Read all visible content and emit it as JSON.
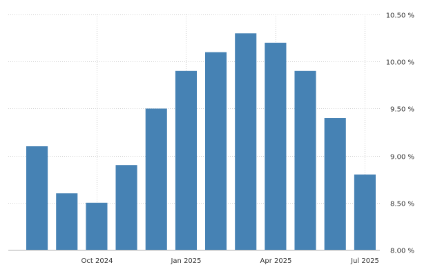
{
  "chart_data": {
    "type": "bar",
    "title": "",
    "xlabel": "",
    "ylabel": "",
    "x": [
      "2024-08",
      "2024-09",
      "2024-10",
      "2024-11",
      "2024-12",
      "2025-01",
      "2025-02",
      "2025-03",
      "2025-04",
      "2025-05",
      "2025-06",
      "2025-07"
    ],
    "values": [
      9.1,
      8.6,
      8.5,
      8.9,
      9.5,
      9.9,
      10.1,
      10.3,
      10.2,
      9.9,
      9.4,
      8.8
    ],
    "ylim": [
      8.0,
      10.5
    ],
    "y_ticks": [
      {
        "value": 8.0,
        "label": "8.00 %"
      },
      {
        "value": 8.5,
        "label": "8.50 %"
      },
      {
        "value": 9.0,
        "label": "9.00 %"
      },
      {
        "value": 9.5,
        "label": "9.50 %"
      },
      {
        "value": 10.0,
        "label": "10.00 %"
      },
      {
        "value": 10.5,
        "label": "10.50 %"
      }
    ],
    "x_ticks": [
      {
        "index": 2,
        "label": "Oct 2024"
      },
      {
        "index": 5,
        "label": "Jan 2025"
      },
      {
        "index": 8,
        "label": "Apr 2025"
      },
      {
        "index": 11,
        "label": "Jul 2025"
      }
    ],
    "y_axis_side": "right",
    "grid": true,
    "bar_color": "#4682b4"
  }
}
